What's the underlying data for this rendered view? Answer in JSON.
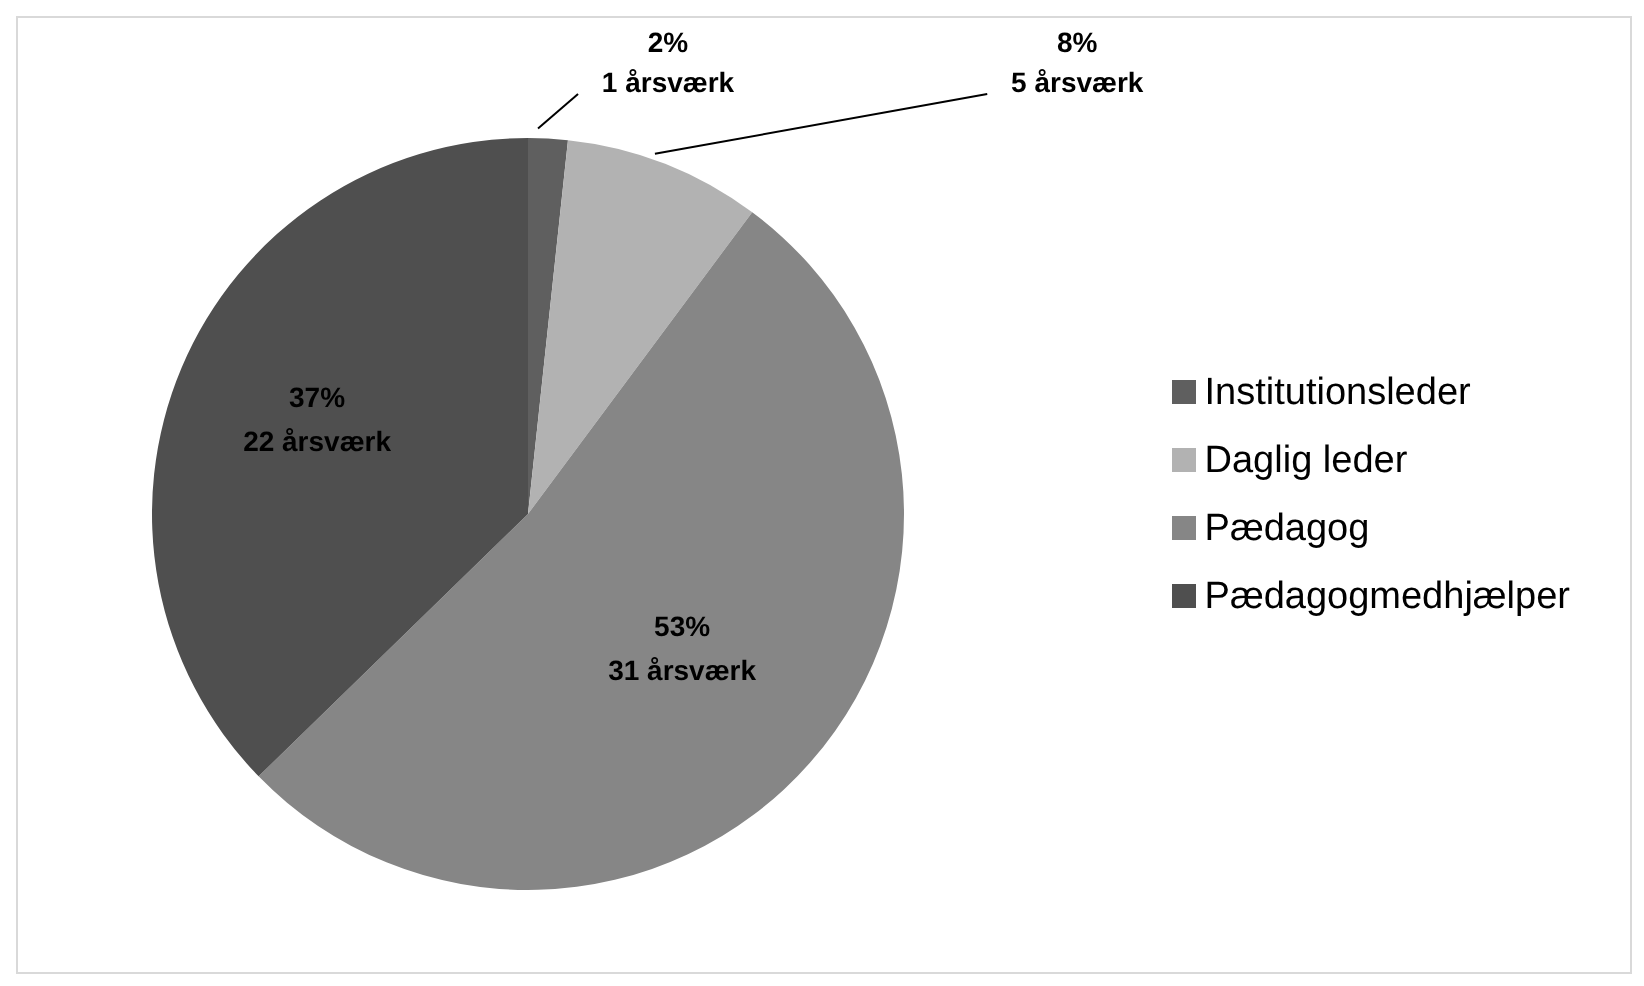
{
  "chart_data": {
    "type": "pie",
    "categories": [
      "Institutionsleder",
      "Daglig leder",
      "Pædagog",
      "Pædagogmedhjælper"
    ],
    "values": [
      1,
      5,
      31,
      22
    ],
    "colors": [
      "#5f5f5f",
      "#b2b2b2",
      "#868686",
      "#4f4f4f"
    ],
    "value_labels": [
      "2%\n1 årsværk",
      "8%\n5 årsværk",
      "53%\n31 årsværk",
      "37%\n22 årsværk"
    ],
    "legend": "right"
  }
}
